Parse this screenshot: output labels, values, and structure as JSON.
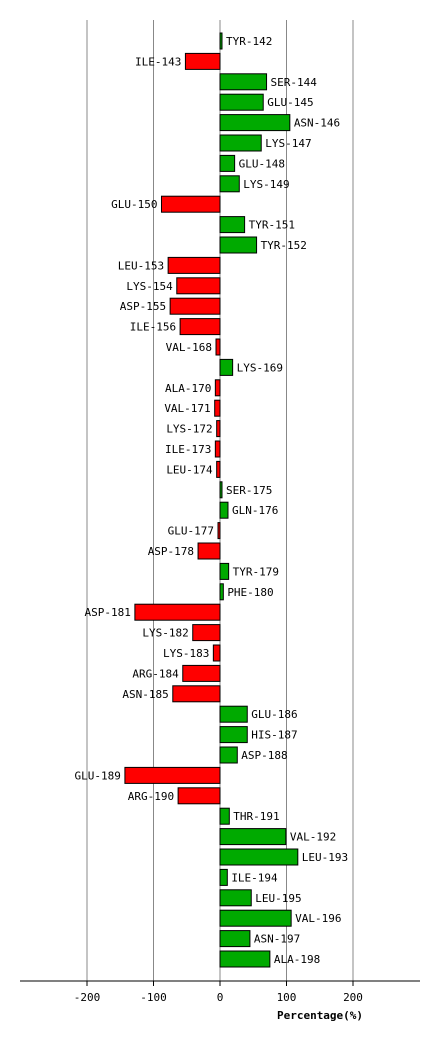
{
  "chart_data": {
    "type": "bar",
    "orientation": "horizontal",
    "xlabel": "Percentage(%)",
    "xlim": [
      -300,
      300
    ],
    "xticks": [
      -200,
      -100,
      0,
      100,
      200
    ],
    "grid": true,
    "colors": {
      "positive": "#00aa00",
      "negative": "#ff0000",
      "outline": "#000000"
    },
    "categories": [
      "TYR-142",
      "ILE-143",
      "SER-144",
      "GLU-145",
      "ASN-146",
      "LYS-147",
      "GLU-148",
      "LYS-149",
      "GLU-150",
      "TYR-151",
      "TYR-152",
      "LEU-153",
      "LYS-154",
      "ASP-155",
      "ILE-156",
      "VAL-168",
      "LYS-169",
      "ALA-170",
      "VAL-171",
      "LYS-172",
      "ILE-173",
      "LEU-174",
      "SER-175",
      "GLN-176",
      "GLU-177",
      "ASP-178",
      "TYR-179",
      "PHE-180",
      "ASP-181",
      "LYS-182",
      "LYS-183",
      "ARG-184",
      "ASN-185",
      "GLU-186",
      "HIS-187",
      "ASP-188",
      "GLU-189",
      "ARG-190",
      "THR-191",
      "VAL-192",
      "LEU-193",
      "ILE-194",
      "LEU-195",
      "VAL-196",
      "ASN-197",
      "ALA-198"
    ],
    "values": [
      3,
      -52,
      70,
      65,
      105,
      62,
      22,
      29,
      -88,
      37,
      55,
      -78,
      -65,
      -75,
      -60,
      -6,
      19,
      -7,
      -8,
      -5,
      -7,
      -5,
      3,
      12,
      -3,
      -33,
      13,
      5,
      -128,
      -41,
      -10,
      -56,
      -71,
      41,
      41,
      26,
      -143,
      -63,
      14,
      99,
      117,
      11,
      47,
      107,
      45,
      75
    ]
  }
}
